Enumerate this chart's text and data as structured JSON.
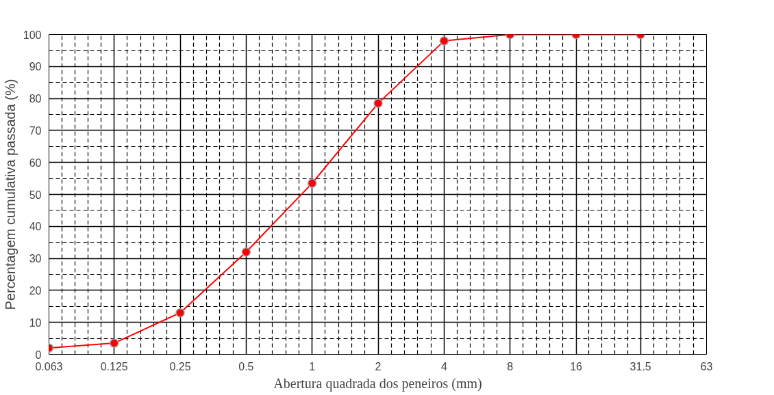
{
  "chart_data": {
    "type": "line",
    "xlabel": "Abertura quadrada dos peneiros (mm)",
    "ylabel": "Percentagem cumulativa passada (%)",
    "x": [
      0.063,
      0.125,
      0.25,
      0.5,
      1,
      2,
      4,
      8,
      16,
      31.5
    ],
    "series": [
      {
        "color": "#ff0000",
        "values": [
          2,
          3.5,
          13,
          32,
          53.5,
          78.5,
          98,
          100,
          100,
          100
        ]
      }
    ],
    "xlim": [
      0.063,
      63
    ],
    "ylim": [
      0,
      100
    ],
    "xticks": [
      0.063,
      0.125,
      0.25,
      0.5,
      1,
      2,
      4,
      8,
      16,
      31.5,
      63
    ],
    "yticks": [
      0,
      10,
      20,
      30,
      40,
      50,
      60,
      70,
      80,
      90,
      100
    ],
    "log": "x",
    "grid": true,
    "marker": "circle",
    "line_style": "solid"
  }
}
